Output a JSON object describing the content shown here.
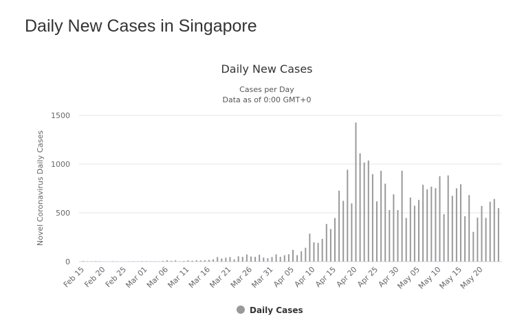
{
  "page_title": "Daily New Cases in Singapore",
  "chart_data": {
    "type": "bar",
    "title": "Daily New Cases",
    "subtitle": [
      "Cases per Day",
      "Data as of 0:00 GMT+0"
    ],
    "xlabel": "",
    "ylabel": "Novel Coronavirus Daily Cases",
    "ylim": [
      0,
      1500
    ],
    "yticks": [
      0,
      500,
      1000,
      1500
    ],
    "xtick_labels": [
      "Feb 15",
      "Feb 20",
      "Feb 25",
      "Mar 01",
      "Mar 06",
      "Mar 11",
      "Mar 16",
      "Mar 21",
      "Mar 26",
      "Mar 31",
      "Apr 05",
      "Apr 10",
      "Apr 15",
      "Apr 20",
      "Apr 25",
      "Apr 30",
      "May 05",
      "May 10",
      "May 15",
      "May 20"
    ],
    "grid": true,
    "legend": "bottom",
    "bar_color": "#999999",
    "series": [
      {
        "name": "Daily Cases",
        "start": "Feb 15",
        "values": [
          5,
          3,
          2,
          4,
          3,
          1,
          1,
          3,
          1,
          1,
          1,
          2,
          3,
          2,
          4,
          4,
          2,
          2,
          2,
          7,
          13,
          8,
          12,
          2,
          6,
          12,
          9,
          13,
          12,
          14,
          17,
          23,
          47,
          32,
          40,
          47,
          23,
          54,
          49,
          73,
          52,
          49,
          70,
          42,
          35,
          47,
          74,
          49,
          65,
          75,
          120,
          66,
          106,
          142,
          287,
          198,
          191,
          233,
          386,
          334,
          447,
          728,
          623,
          942,
          596,
          1426,
          1111,
          1016,
          1037,
          897,
          618,
          931,
          799,
          528,
          690,
          528,
          932,
          447,
          657,
          573,
          632,
          788,
          741,
          768,
          753,
          876,
          486,
          884,
          675,
          752,
          793,
          465,
          682,
          305,
          451,
          570,
          448,
          614,
          642,
          548
        ]
      }
    ]
  }
}
